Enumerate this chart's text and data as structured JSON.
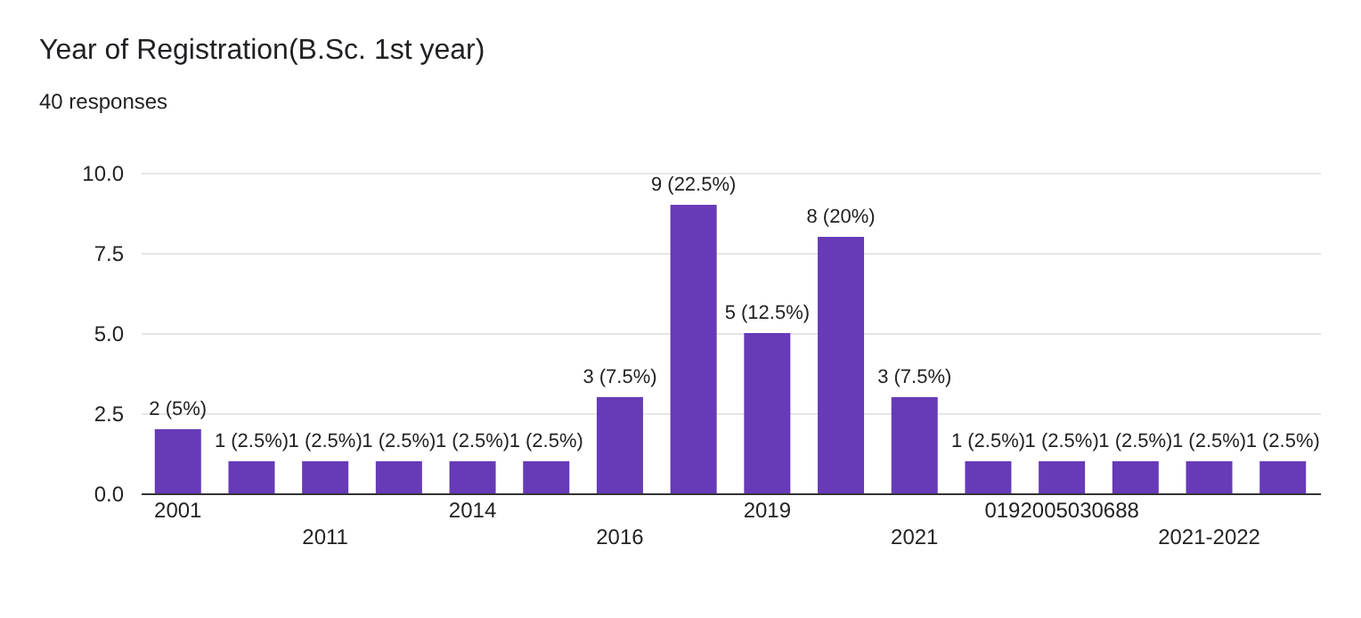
{
  "chart_data": {
    "type": "bar",
    "title": "Year of Registration(B.Sc. 1st year)",
    "subtitle": "40 responses",
    "categories": [
      "2001",
      null,
      "2011",
      null,
      "2014",
      null,
      "2016",
      null,
      "2019",
      null,
      "2021",
      null,
      "0192005030688",
      null,
      "2021-2022",
      null
    ],
    "values": [
      2,
      1,
      1,
      1,
      1,
      1,
      3,
      9,
      5,
      8,
      3,
      1,
      1,
      1,
      1,
      1
    ],
    "value_labels": [
      "2 (5%)",
      "1 (2.5%)",
      "1 (2.5%)",
      "1 (2.5%)",
      "1 (2.5%)",
      "1 (2.5%)",
      "3 (7.5%)",
      "9 (22.5%)",
      "5 (12.5%)",
      "8 (20%)",
      "3 (7.5%)",
      "1 (2.5%)",
      "1 (2.5%)",
      "1 (2.5%)",
      "1 (2.5%)",
      "1 (2.5%)"
    ],
    "color": "#673ab7",
    "ylim": [
      0,
      10
    ],
    "yticks": [
      {
        "value": 0,
        "label": "0.0"
      },
      {
        "value": 2.5,
        "label": "2.5"
      },
      {
        "value": 5,
        "label": "5.0"
      },
      {
        "value": 7.5,
        "label": "7.5"
      },
      {
        "value": 10,
        "label": "10.0"
      }
    ],
    "grid": "y"
  }
}
